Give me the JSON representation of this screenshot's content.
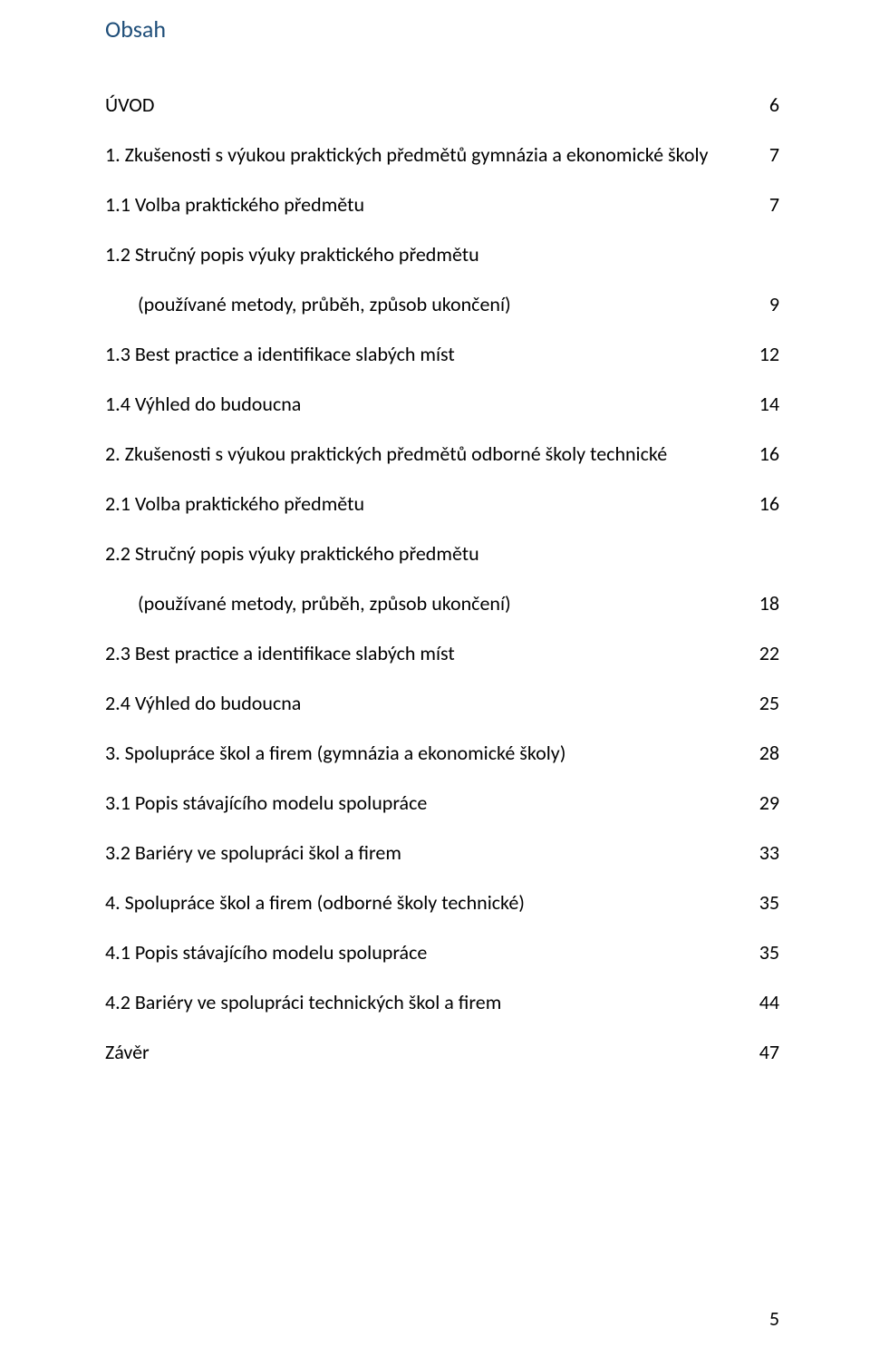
{
  "colors": {
    "heading_color": "#1f4e79",
    "text_color": "#000000",
    "background": "#ffffff"
  },
  "typography": {
    "font_family": "Calibri",
    "heading_fontsize_pt": 18,
    "body_fontsize_pt": 15,
    "line_height": 2.5
  },
  "heading": "Obsah",
  "toc": {
    "intro": {
      "title": "ÚVOD",
      "page": "6"
    },
    "s1": {
      "title": "1. Zkušenosti s výukou praktických předmětů gymnázia a ekonomické školy",
      "page": "7",
      "s1_1": {
        "title": "1.1 Volba praktického předmětu",
        "page": "7"
      },
      "s1_2_lead": "1.2 Stručný popis výuky praktického předmětu",
      "s1_2_sub": {
        "title": "(používané metody, průběh, způsob ukončení)",
        "page": "9"
      },
      "s1_3": {
        "title": "1.3 Best practice a identifikace slabých míst",
        "page": "12"
      },
      "s1_4": {
        "title": "1.4 Výhled do budoucna",
        "page": "14"
      }
    },
    "s2": {
      "title": "2. Zkušenosti s výukou praktických předmětů odborné školy technické",
      "page": "16",
      "s2_1": {
        "title": "2.1 Volba praktického předmětu",
        "page": "16"
      },
      "s2_2_lead": "2.2 Stručný popis výuky praktického předmětu",
      "s2_2_sub": {
        "title": "(používané metody, průběh, způsob ukončení)",
        "page": "18"
      },
      "s2_3": {
        "title": "2.3 Best practice a identifikace slabých míst",
        "page": "22"
      },
      "s2_4": {
        "title": "2.4 Výhled do budoucna",
        "page": "25"
      }
    },
    "s3": {
      "title": "3. Spolupráce škol a firem (gymnázia a ekonomické školy)",
      "page": "28",
      "s3_1": {
        "title": "3.1 Popis stávajícího modelu spolupráce",
        "page": "29"
      },
      "s3_2": {
        "title": "3.2 Bariéry ve spolupráci škol a firem",
        "page": "33"
      }
    },
    "s4": {
      "title": "4. Spolupráce škol a firem (odborné školy technické)",
      "page": "35",
      "s4_1": {
        "title": "4.1 Popis stávajícího modelu spolupráce",
        "page": "35"
      },
      "s4_2": {
        "title": "4.2 Bariéry ve spolupráci technických škol a firem",
        "page": "44"
      }
    },
    "conclusion": {
      "title": "Závěr",
      "page": "47"
    }
  },
  "footer_page_number": "5"
}
